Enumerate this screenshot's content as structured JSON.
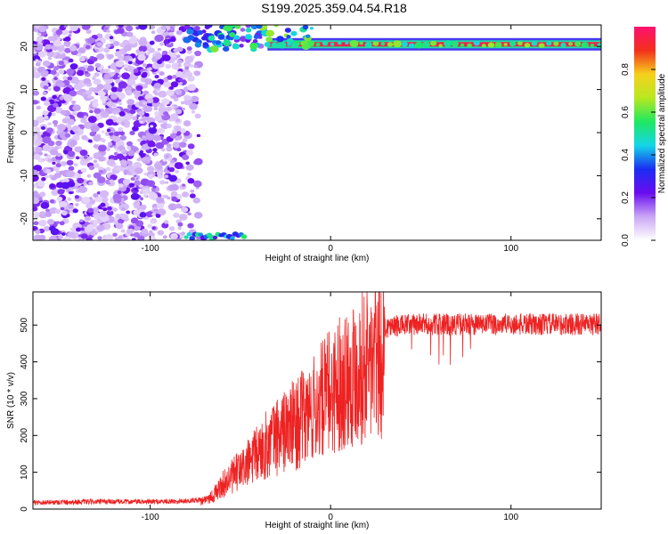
{
  "title": "S199.2025.359.04.54.R18",
  "colors": {
    "snr_line": "#ee2222",
    "axis": "#000000",
    "colormap": [
      "#ffffff",
      "#c9a6f5",
      "#6a0cf0",
      "#1b2df2",
      "#14d6e8",
      "#20e860",
      "#b8e820",
      "#f6d01c",
      "#f2301c",
      "#ff1070"
    ]
  },
  "chart_data": [
    {
      "type": "heatmap",
      "name": "spectrogram",
      "xlabel": "Height of straight line (km)",
      "ylabel": "Frequency (Hz)",
      "xlim": [
        -165,
        150
      ],
      "ylim": [
        -25,
        25
      ],
      "xticks": [
        -100,
        0,
        100
      ],
      "yticks": [
        -20,
        -10,
        0,
        10,
        20
      ],
      "colorbar": {
        "label": "Normalized spectral amplitude",
        "range": [
          0.0,
          1.0
        ],
        "ticks": [
          0.0,
          0.2,
          0.4,
          0.6,
          0.8
        ]
      },
      "features": {
        "noise_region_x": [
          -165,
          -73
        ],
        "carrier_frequency_hz": 20.5,
        "carrier_start_x": -35,
        "carrier_amplitude": 0.95,
        "aliased_tone_x": [
          -80,
          -48
        ],
        "aliased_tone_frequency_hz": -24
      }
    },
    {
      "type": "line",
      "name": "snr",
      "xlabel": "Height of straight line (km)",
      "ylabel": "SNR (10 * v/v)",
      "xlim": [
        -165,
        150
      ],
      "ylim": [
        0,
        590
      ],
      "xticks": [
        -100,
        0,
        100
      ],
      "yticks": [
        0,
        100,
        200,
        300,
        400,
        500
      ],
      "envelope": {
        "x": [
          -165,
          -130,
          -100,
          -80,
          -72,
          -65,
          -60,
          -55,
          -50,
          -45,
          -40,
          -35,
          -30,
          -25,
          -20,
          -15,
          -10,
          -5,
          0,
          5,
          10,
          15,
          20,
          25,
          30,
          35,
          40,
          50,
          60,
          80,
          100,
          120,
          140,
          150
        ],
        "y": [
          18,
          20,
          20,
          22,
          26,
          45,
          80,
          105,
          130,
          155,
          185,
          215,
          240,
          260,
          280,
          300,
          325,
          360,
          390,
          420,
          445,
          465,
          480,
          492,
          498,
          500,
          502,
          505,
          505,
          505,
          505,
          505,
          505,
          505
        ]
      }
    }
  ]
}
